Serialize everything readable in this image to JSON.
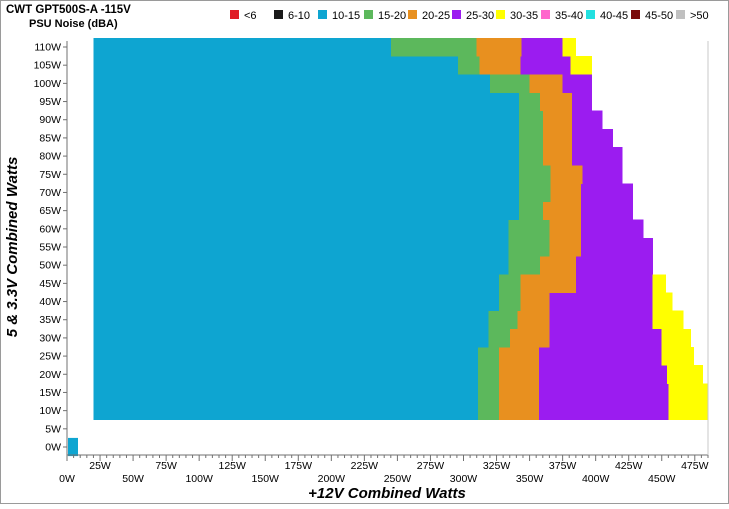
{
  "chart_data": {
    "type": "heatmap",
    "title": "CWT GPT500S-A -115V",
    "subtitle": "PSU Noise (dBA)",
    "xlabel": "+12V Combined Watts",
    "ylabel": "5 & 3.3V Combined Watts",
    "xlim": [
      0,
      485
    ],
    "ylim": [
      0,
      110
    ],
    "x_ticks": [
      "0W",
      "25W",
      "50W",
      "75W",
      "100W",
      "125W",
      "150W",
      "175W",
      "200W",
      "225W",
      "250W",
      "275W",
      "300W",
      "325W",
      "350W",
      "375W",
      "400W",
      "425W",
      "450W",
      "475W"
    ],
    "x_tick_values": [
      0,
      25,
      50,
      75,
      100,
      125,
      150,
      175,
      200,
      225,
      250,
      275,
      300,
      325,
      350,
      375,
      400,
      425,
      450,
      475
    ],
    "y_ticks": [
      "0W",
      "5W",
      "10W",
      "15W",
      "20W",
      "25W",
      "30W",
      "35W",
      "40W",
      "45W",
      "50W",
      "55W",
      "60W",
      "65W",
      "70W",
      "75W",
      "80W",
      "85W",
      "90W",
      "95W",
      "100W",
      "105W",
      "110W"
    ],
    "y_tick_values": [
      0,
      5,
      10,
      15,
      20,
      25,
      30,
      35,
      40,
      45,
      50,
      55,
      60,
      65,
      70,
      75,
      80,
      85,
      90,
      95,
      100,
      105,
      110
    ],
    "legend_position": "top",
    "legend": [
      {
        "label": "<6",
        "color": "#e01b24"
      },
      {
        "label": "6-10",
        "color": "#1a1a1a"
      },
      {
        "label": "10-15",
        "color": "#0ea5d1"
      },
      {
        "label": "15-20",
        "color": "#5cb85c"
      },
      {
        "label": "20-25",
        "color": "#e8901f"
      },
      {
        "label": "25-30",
        "color": "#9b1cf0"
      },
      {
        "label": "30-35",
        "color": "#ffff00"
      },
      {
        "label": "35-40",
        "color": "#ff66cc"
      },
      {
        "label": "40-45",
        "color": "#22e0e0"
      },
      {
        "label": "45-50",
        "color": "#7a0a0a"
      },
      {
        "label": ">50",
        "color": "#c0c0c0"
      }
    ],
    "min_point": {
      "x": 0,
      "y": 0,
      "band": "10-15"
    },
    "rows": [
      {
        "y": 10,
        "x_start": 20,
        "b1": 311,
        "b2": 327,
        "b3": 357,
        "b4": 455,
        "b5": 485
      },
      {
        "y": 15,
        "x_start": 20,
        "b1": 311,
        "b2": 327,
        "b3": 357,
        "b4": 455,
        "b5": 485
      },
      {
        "y": 20,
        "x_start": 20,
        "b1": 311,
        "b2": 327,
        "b3": 357,
        "b4": 454,
        "b5": 481
      },
      {
        "y": 25,
        "x_start": 20,
        "b1": 311,
        "b2": 327,
        "b3": 357,
        "b4": 450,
        "b5": 474
      },
      {
        "y": 30,
        "x_start": 20,
        "b1": 319,
        "b2": 335,
        "b3": 365,
        "b4": 450,
        "b5": 472
      },
      {
        "y": 35,
        "x_start": 20,
        "b1": 319,
        "b2": 341,
        "b3": 365,
        "b4": 443,
        "b5": 466
      },
      {
        "y": 40,
        "x_start": 20,
        "b1": 327,
        "b2": 343,
        "b3": 365,
        "b4": 443,
        "b5": 458
      },
      {
        "y": 45,
        "x_start": 20,
        "b1": 327,
        "b2": 343,
        "b3": 385,
        "b4": 443,
        "b5": 453
      },
      {
        "y": 50,
        "x_start": 20,
        "b1": 334,
        "b2": 358,
        "b3": 385,
        "b4": 443,
        "b5": 443
      },
      {
        "y": 55,
        "x_start": 20,
        "b1": 334,
        "b2": 365,
        "b3": 389,
        "b4": 443,
        "b5": 443
      },
      {
        "y": 60,
        "x_start": 20,
        "b1": 334,
        "b2": 365,
        "b3": 389,
        "b4": 436,
        "b5": 436
      },
      {
        "y": 65,
        "x_start": 20,
        "b1": 342,
        "b2": 360,
        "b3": 389,
        "b4": 428,
        "b5": 428
      },
      {
        "y": 70,
        "x_start": 20,
        "b1": 342,
        "b2": 366,
        "b3": 389,
        "b4": 428,
        "b5": 428
      },
      {
        "y": 75,
        "x_start": 20,
        "b1": 342,
        "b2": 366,
        "b3": 390,
        "b4": 420,
        "b5": 420
      },
      {
        "y": 80,
        "x_start": 20,
        "b1": 342,
        "b2": 360,
        "b3": 382,
        "b4": 420,
        "b5": 420
      },
      {
        "y": 85,
        "x_start": 20,
        "b1": 342,
        "b2": 360,
        "b3": 382,
        "b4": 413,
        "b5": 413
      },
      {
        "y": 90,
        "x_start": 20,
        "b1": 342,
        "b2": 360,
        "b3": 382,
        "b4": 405,
        "b5": 405
      },
      {
        "y": 95,
        "x_start": 20,
        "b1": 342,
        "b2": 358,
        "b3": 382,
        "b4": 397,
        "b5": 397
      },
      {
        "y": 100,
        "x_start": 20,
        "b1": 320,
        "b2": 350,
        "b3": 375,
        "b4": 397,
        "b5": 397
      },
      {
        "y": 105,
        "x_start": 20,
        "b1": 296,
        "b2": 312,
        "b3": 343,
        "b4": 381,
        "b5": 397
      },
      {
        "y": 110,
        "x_start": 20,
        "b1": 245,
        "b2": 310,
        "b3": 344,
        "b4": 375,
        "b5": 385
      }
    ]
  }
}
